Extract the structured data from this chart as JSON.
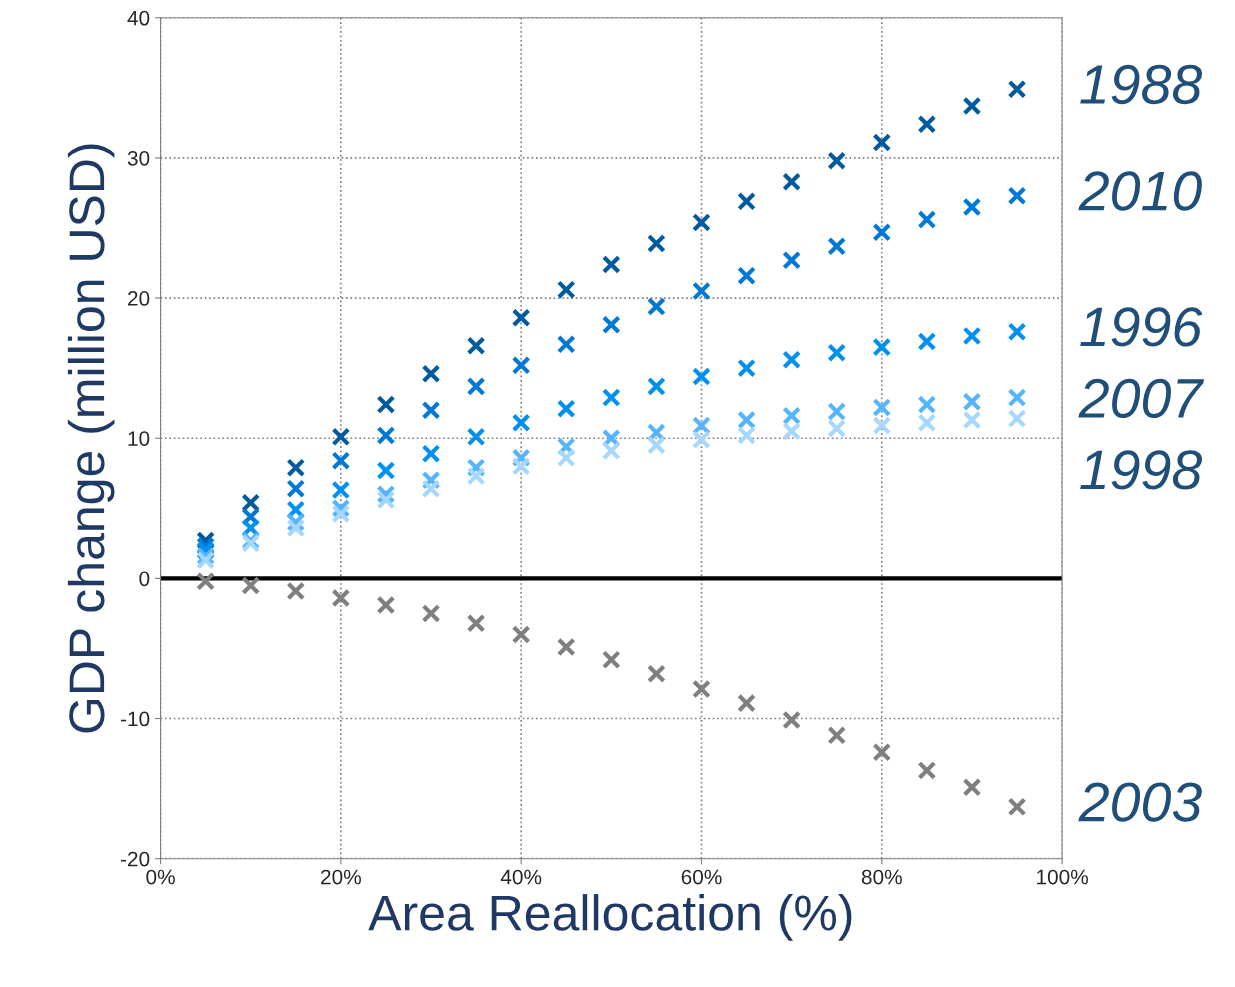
{
  "chart_data": {
    "type": "scatter",
    "xlabel": "Area Reallocation (%)",
    "ylabel": "GDP change (million USD)",
    "x": [
      5,
      10,
      15,
      20,
      25,
      30,
      35,
      40,
      45,
      50,
      55,
      60,
      65,
      70,
      75,
      80,
      85,
      90,
      95
    ],
    "xlim": [
      0,
      100
    ],
    "xticks": [
      {
        "value": 0,
        "label": "0%"
      },
      {
        "value": 20,
        "label": "20%"
      },
      {
        "value": 40,
        "label": "40%"
      },
      {
        "value": 60,
        "label": "60%"
      },
      {
        "value": 80,
        "label": "80%"
      },
      {
        "value": 100,
        "label": "100%"
      }
    ],
    "ylim": [
      -20,
      40
    ],
    "yticks": [
      -20,
      -10,
      0,
      10,
      20,
      30,
      40
    ],
    "grid": true,
    "legend": false,
    "marker": "cross",
    "ref_lines": [
      {
        "axis": "y",
        "value": 0,
        "color": "#000000"
      }
    ],
    "series": [
      {
        "name": "1988",
        "color": "#005a9e",
        "values": [
          2.7,
          5.4,
          7.9,
          10.1,
          12.4,
          14.6,
          16.6,
          18.6,
          20.6,
          22.4,
          23.9,
          25.4,
          26.9,
          28.3,
          29.8,
          31.1,
          32.4,
          33.7,
          34.9
        ]
      },
      {
        "name": "2010",
        "color": "#0078d7",
        "values": [
          2.3,
          4.4,
          6.4,
          8.4,
          10.2,
          12.0,
          13.7,
          15.2,
          16.7,
          18.1,
          19.4,
          20.5,
          21.6,
          22.7,
          23.7,
          24.7,
          25.6,
          26.5,
          27.3
        ]
      },
      {
        "name": "1996",
        "color": "#0090f0",
        "values": [
          2.0,
          3.6,
          4.9,
          6.3,
          7.7,
          8.9,
          10.1,
          11.1,
          12.1,
          12.9,
          13.7,
          14.4,
          15.0,
          15.6,
          16.1,
          16.5,
          16.9,
          17.3,
          17.6
        ]
      },
      {
        "name": "2007",
        "color": "#55b4ff",
        "values": [
          1.6,
          2.7,
          4.0,
          5.0,
          6.0,
          7.0,
          7.9,
          8.6,
          9.4,
          10.0,
          10.4,
          10.9,
          11.3,
          11.6,
          11.9,
          12.2,
          12.4,
          12.6,
          12.9
        ]
      },
      {
        "name": "1998",
        "color": "#a6d8ff",
        "values": [
          1.3,
          2.5,
          3.6,
          4.6,
          5.6,
          6.4,
          7.3,
          8.0,
          8.6,
          9.1,
          9.5,
          9.9,
          10.2,
          10.5,
          10.7,
          10.9,
          11.1,
          11.3,
          11.4
        ]
      },
      {
        "name": "2003",
        "color": "#7f7f7f",
        "values": [
          -0.2,
          -0.5,
          -0.9,
          -1.4,
          -1.9,
          -2.5,
          -3.2,
          -4.0,
          -4.9,
          -5.8,
          -6.8,
          -7.9,
          -8.9,
          -10.1,
          -11.2,
          -12.4,
          -13.7,
          -14.9,
          -16.3
        ]
      }
    ]
  }
}
